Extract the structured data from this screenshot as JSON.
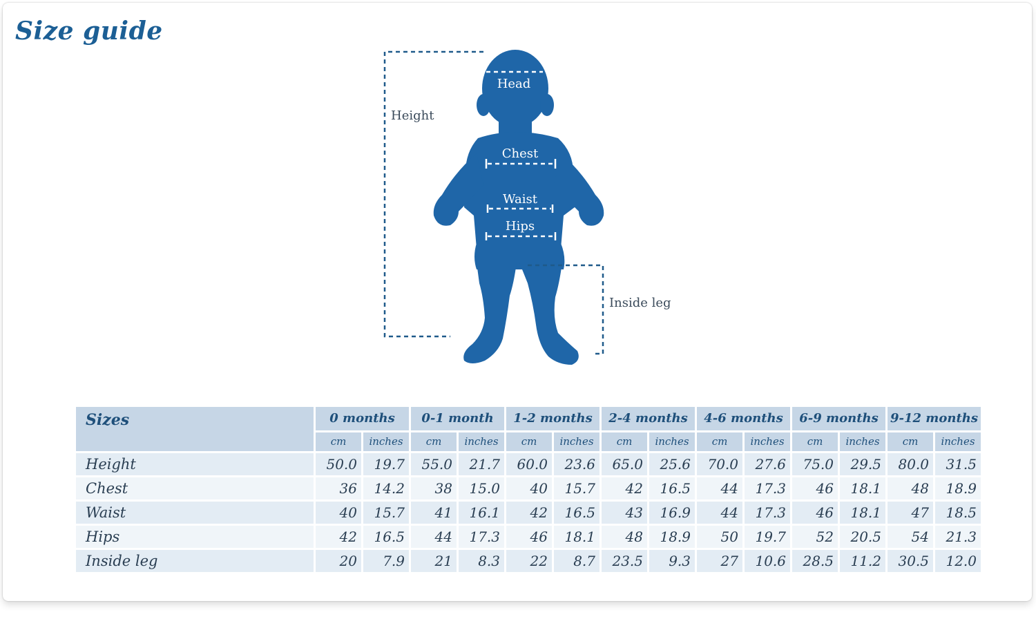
{
  "title": "Size guide",
  "figure": {
    "labels": {
      "head": "Head",
      "chest": "Chest",
      "waist": "Waist",
      "hips": "Hips",
      "height": "Height",
      "inside_leg": "Inside leg"
    },
    "colors": {
      "silhouette": "#1f66a8",
      "dashes": "#1f5a8a",
      "label_text": "#3a4a5a"
    }
  },
  "table": {
    "sizes_header": "Sizes",
    "groups": [
      "0 months",
      "0-1 month",
      "1-2 months",
      "2-4 months",
      "4-6 months",
      "6-9 months",
      "9-12 months"
    ],
    "units": {
      "cm": "cm",
      "inches": "inches"
    },
    "rows": [
      {
        "label": "Height",
        "values": [
          "50.0",
          "19.7",
          "55.0",
          "21.7",
          "60.0",
          "23.6",
          "65.0",
          "25.6",
          "70.0",
          "27.6",
          "75.0",
          "29.5",
          "80.0",
          "31.5"
        ]
      },
      {
        "label": "Chest",
        "values": [
          "36",
          "14.2",
          "38",
          "15.0",
          "40",
          "15.7",
          "42",
          "16.5",
          "44",
          "17.3",
          "46",
          "18.1",
          "48",
          "18.9"
        ]
      },
      {
        "label": "Waist",
        "values": [
          "40",
          "15.7",
          "41",
          "16.1",
          "42",
          "16.5",
          "43",
          "16.9",
          "44",
          "17.3",
          "46",
          "18.1",
          "47",
          "18.5"
        ]
      },
      {
        "label": "Hips",
        "values": [
          "42",
          "16.5",
          "44",
          "17.3",
          "46",
          "18.1",
          "48",
          "18.9",
          "50",
          "19.7",
          "52",
          "20.5",
          "54",
          "21.3"
        ]
      },
      {
        "label": "Inside leg",
        "values": [
          "20",
          "7.9",
          "21",
          "8.3",
          "22",
          "8.7",
          "23.5",
          "9.3",
          "27",
          "10.6",
          "28.5",
          "11.2",
          "30.5",
          "12.0"
        ]
      }
    ],
    "colors": {
      "header_bg": "#c6d6e6",
      "row_bg_a": "#e3ecf4",
      "row_bg_b": "#f0f5f9",
      "header_text": "#1e4f7a"
    }
  }
}
